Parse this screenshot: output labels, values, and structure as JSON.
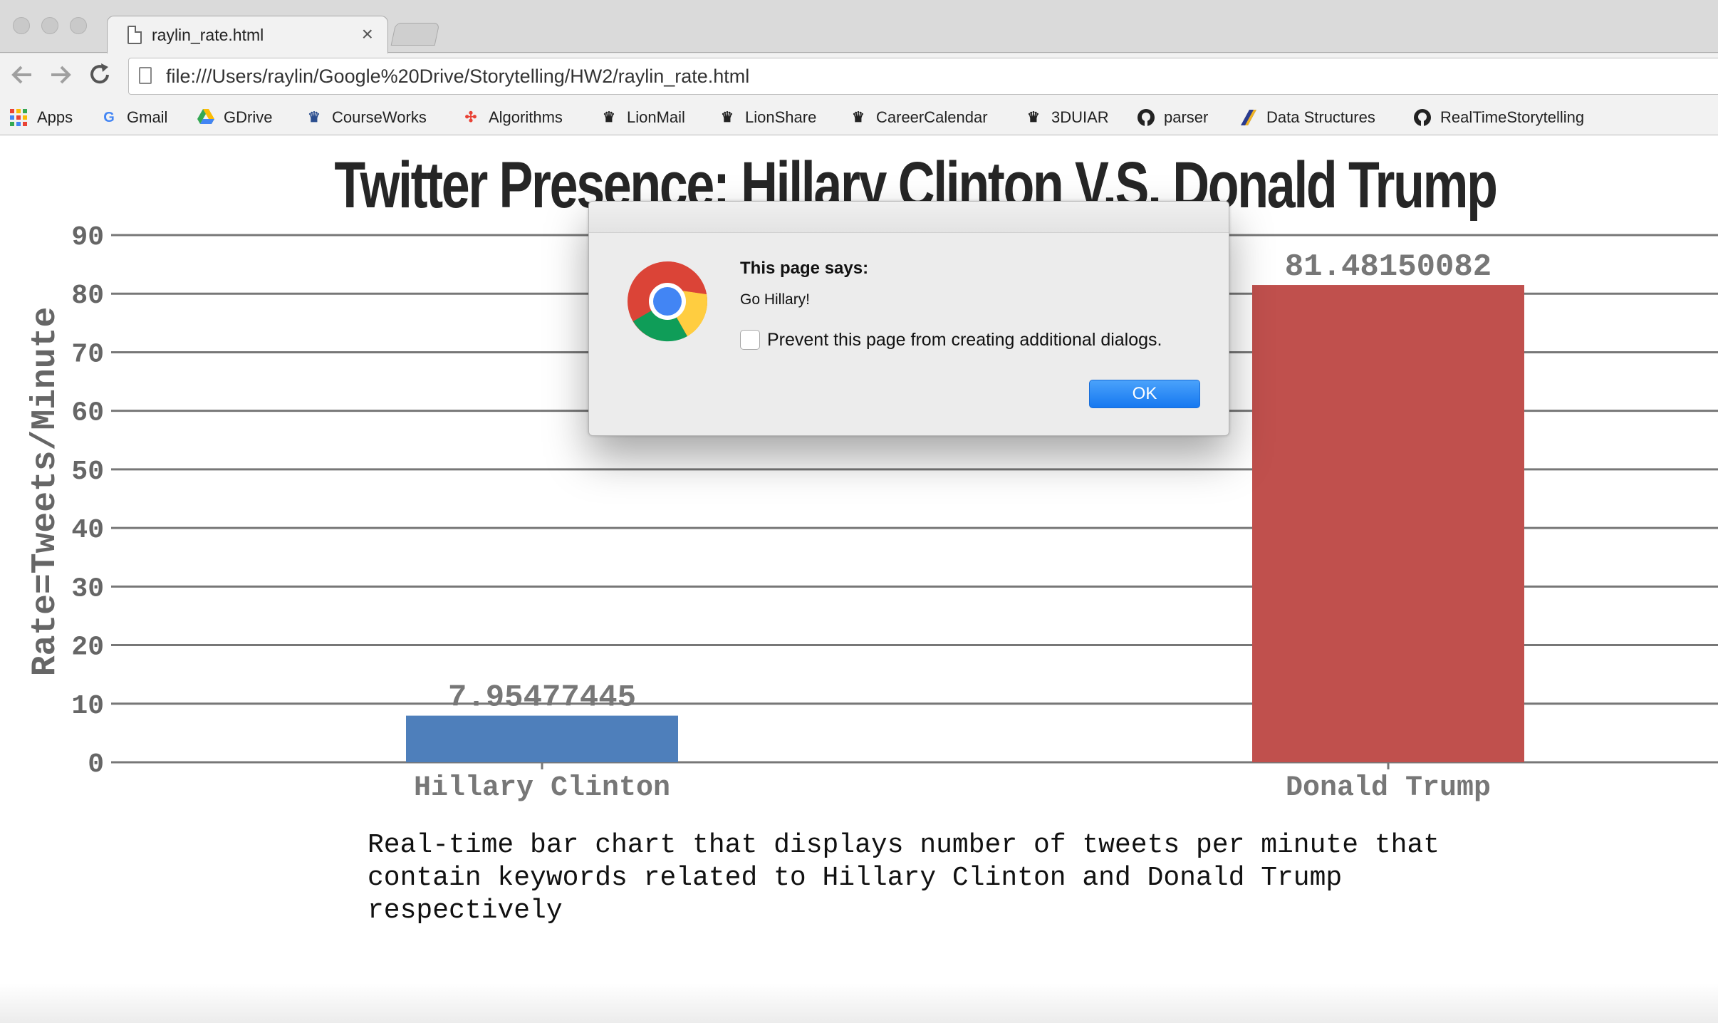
{
  "browser": {
    "tab_title": "raylin_rate.html",
    "tab_close": "×",
    "url": "file:///Users/raylin/Google%20Drive/Storytelling/HW2/raylin_rate.html",
    "bookmarks": [
      {
        "label": "Apps",
        "icon": "apps-grid-icon"
      },
      {
        "label": "Gmail",
        "icon": "google-icon"
      },
      {
        "label": "GDrive",
        "icon": "drive-icon"
      },
      {
        "label": "CourseWorks",
        "icon": "crown-icon"
      },
      {
        "label": "Algorithms",
        "icon": "pinwheel-icon"
      },
      {
        "label": "LionMail",
        "icon": "crown-icon"
      },
      {
        "label": "LionShare",
        "icon": "crown-icon"
      },
      {
        "label": "CareerCalendar",
        "icon": "crown-icon"
      },
      {
        "label": "3DUIAR",
        "icon": "crown-icon"
      },
      {
        "label": "parser",
        "icon": "github-icon"
      },
      {
        "label": "Data Structures",
        "icon": "data-structures-icon"
      },
      {
        "label": "RealTimeStorytelling",
        "icon": "github-icon"
      }
    ]
  },
  "chart_data": {
    "type": "bar",
    "title": "Twitter Presence: Hillary Clinton V.S. Donald Trump",
    "ylabel": "Rate=Tweets/Minute",
    "xlabel": "",
    "categories": [
      "Hillary Clinton",
      "Donald Trump"
    ],
    "values": [
      7.95477445,
      81.48150082
    ],
    "value_labels": [
      "7.95477445",
      "81.48150082"
    ],
    "colors": [
      "#4e7fbb",
      "#c0504d"
    ],
    "ylim": [
      0,
      90
    ],
    "yticks": [
      0,
      10,
      20,
      30,
      40,
      50,
      60,
      70,
      80,
      90
    ],
    "grid": true
  },
  "caption": "Real-time bar chart that displays number of tweets per minute that contain keywords related to Hillary Clinton and Donald Trump respectively",
  "dialog": {
    "heading": "This page says:",
    "message": "Go Hillary!",
    "checkbox_label": "Prevent this page from creating additional dialogs.",
    "ok_label": "OK"
  }
}
